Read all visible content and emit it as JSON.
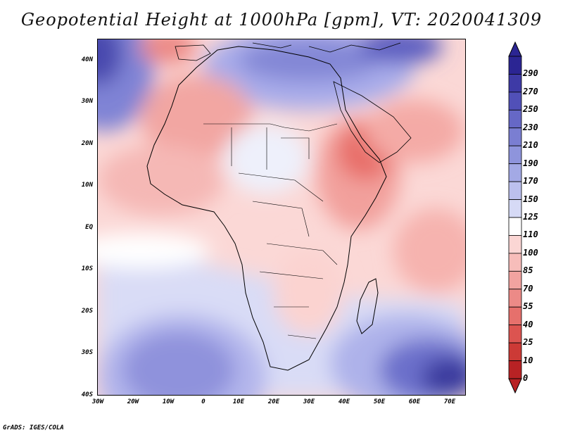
{
  "title": "Geopotential Height at 1000hPa [gpm], VT: 2020041309",
  "footer": "GrADS: IGES/COLA",
  "map": {
    "variable": "Geopotential Height",
    "level": "1000hPa",
    "units": "gpm",
    "valid_time": "2020041309",
    "lon_range": [
      -30,
      75
    ],
    "lat_range": [
      -40,
      45
    ]
  },
  "axes": {
    "y_ticks": [
      "40N",
      "30N",
      "20N",
      "10N",
      "EQ",
      "10S",
      "20S",
      "30S",
      "40S"
    ],
    "y_values": [
      40,
      30,
      20,
      10,
      0,
      -10,
      -20,
      -30,
      -40
    ],
    "x_ticks": [
      "30W",
      "20W",
      "10W",
      "0",
      "10E",
      "20E",
      "30E",
      "40E",
      "50E",
      "60E",
      "70E"
    ],
    "x_values": [
      -30,
      -20,
      -10,
      0,
      10,
      20,
      30,
      40,
      50,
      60,
      70
    ]
  },
  "colorbar": {
    "labels": [
      "290",
      "270",
      "250",
      "230",
      "210",
      "190",
      "170",
      "150",
      "125",
      "110",
      "100",
      "85",
      "70",
      "55",
      "40",
      "25",
      "10",
      "0"
    ],
    "colors": [
      "#2b2593",
      "#3e3aa6",
      "#5150b8",
      "#6668c6",
      "#7a7ed2",
      "#8e94dc",
      "#a3a9e5",
      "#bcc0ee",
      "#d6daf6",
      "#ffffff",
      "#fbd6d4",
      "#f7bdba",
      "#f2a3a0",
      "#ec8a87",
      "#e6706c",
      "#dc5450",
      "#cc3a36",
      "#b82224"
    ]
  }
}
